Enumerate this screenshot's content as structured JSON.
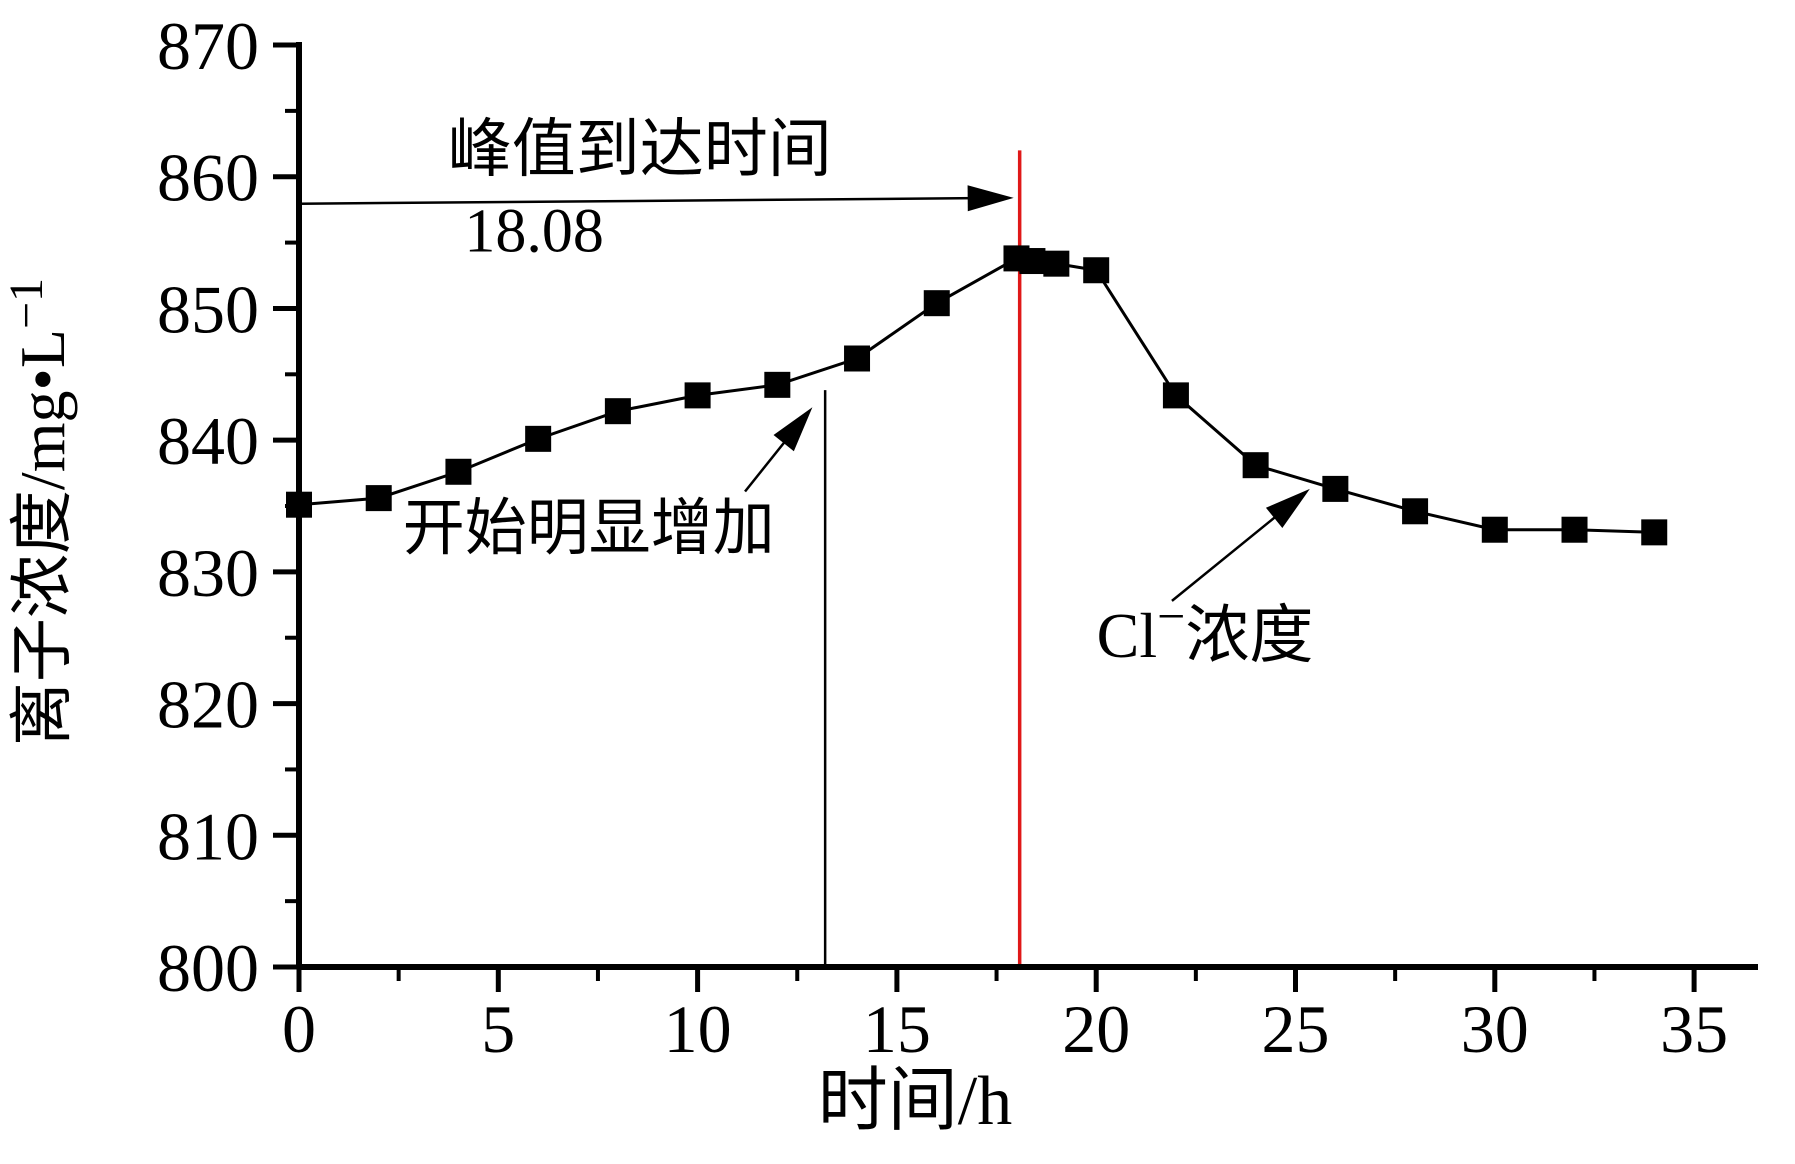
{
  "chart_data": {
    "type": "line",
    "title": "",
    "xlabel": "时间/h",
    "ylabel": {
      "base": "离子浓度/mg•L",
      "sup": "−1"
    },
    "series_name": "Cl−浓度",
    "x": [
      0,
      2,
      4,
      6,
      8,
      10,
      12,
      14,
      16,
      18,
      18.4,
      19,
      20,
      22,
      24,
      26,
      28,
      30,
      32,
      34
    ],
    "y": [
      835.1,
      835.6,
      837.6,
      840.1,
      842.2,
      843.4,
      844.2,
      846.2,
      850.4,
      853.8,
      853.6,
      853.4,
      852.9,
      843.4,
      838.1,
      836.3,
      834.6,
      833.2,
      833.2,
      833.0
    ],
    "xlim": [
      0,
      36.6
    ],
    "ylim": [
      800,
      870
    ],
    "x_major_ticks": [
      0,
      5,
      10,
      15,
      20,
      25,
      30,
      35
    ],
    "x_minor_step": 2.5,
    "y_major_ticks": [
      800,
      810,
      820,
      830,
      840,
      850,
      860,
      870
    ],
    "y_minor_step": 5,
    "grid": false,
    "legend": "none",
    "marker": "square",
    "colors": {
      "line": "#000000",
      "marker": "#000000",
      "axis": "#000000",
      "red_line": "#e01818"
    },
    "annotations": {
      "peak_label": {
        "text": "峰值到达时间",
        "x": 8.55,
        "y": 862.1
      },
      "peak_value_label": {
        "text": "18.08",
        "x": 5.9,
        "y": 856.0
      },
      "peak_arrow": {
        "x1": 0,
        "y1": 857.95,
        "x2": 17.93,
        "y2": 858.4
      },
      "red_vline": {
        "x": 18.08,
        "y1": 800,
        "y2": 862
      },
      "black_vline": {
        "x": 13.2,
        "y1": 800,
        "y2": 843.8
      },
      "increase_label": {
        "text": "开始明显增加",
        "x": 7.27,
        "y": 833.4
      },
      "increase_arrow": {
        "x1": 11.19,
        "y1": 836.1,
        "x2": 12.88,
        "y2": 842.5
      },
      "cl_label": {
        "base": "Cl",
        "sup": "−",
        "rest": "浓度",
        "x": 22.73,
        "y": 825.2
      },
      "cl_arrow": {
        "x1": 21.9,
        "y1": 827.8,
        "x2": 25.36,
        "y2": 836.3
      }
    }
  }
}
